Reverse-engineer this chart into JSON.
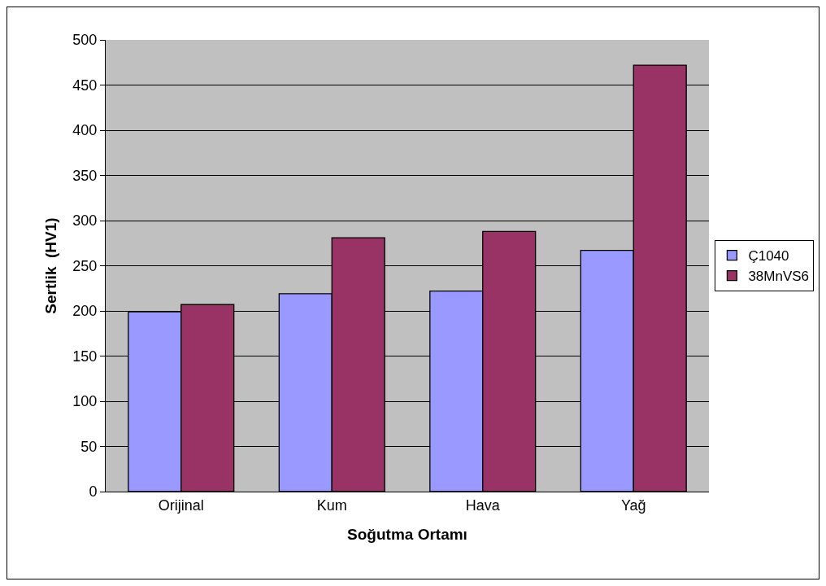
{
  "chart_data": {
    "type": "bar",
    "xlabel": "Soğutma Ortamı",
    "ylabel": "Sertlik  (HV1)",
    "categories": [
      "Orijinal",
      "Kum",
      "Hava",
      "Yağ"
    ],
    "series": [
      {
        "name": "Ç1040",
        "color": "#9999ff",
        "values": [
          199,
          219,
          222,
          267
        ]
      },
      {
        "name": "38MnVS6",
        "color": "#993366",
        "values": [
          207,
          281,
          288,
          472
        ]
      }
    ],
    "ylim": [
      0,
      500
    ],
    "yticks": [
      0,
      50,
      100,
      150,
      200,
      250,
      300,
      350,
      400,
      450,
      500
    ],
    "grid": "y",
    "legend": "right"
  }
}
